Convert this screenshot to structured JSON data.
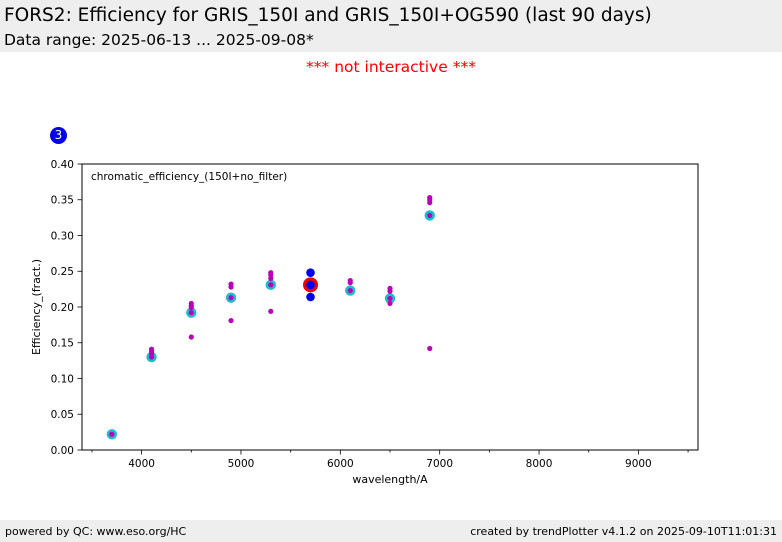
{
  "header": {
    "title": "FORS2: Efficiency for GRIS_150I and GRIS_150I+OG590 (last 90 days)",
    "subtitle": "Data range: 2025-06-13 ... 2025-09-08*"
  },
  "notice": "*** not interactive ***",
  "badge": "3",
  "footer": {
    "left": "powered by QC: www.eso.org/HC",
    "right": "created by trendPlotter v4.1.2 on 2025-09-10T11:01:31"
  },
  "chart_data": {
    "type": "scatter",
    "annotation": "chromatic_efficiency_(150I+no_filter)",
    "xlabel": "wavelength/A",
    "ylabel": "Efficiency_(fract.)",
    "xlim": [
      3400,
      9600
    ],
    "ylim": [
      0.0,
      0.4
    ],
    "xticks": [
      "4000",
      "5000",
      "6000",
      "7000",
      "8000",
      "9000"
    ],
    "yticks": [
      "0.00",
      "0.05",
      "0.10",
      "0.15",
      "0.20",
      "0.25",
      "0.30",
      "0.35",
      "0.40"
    ],
    "colors": {
      "history": "#bb00bb",
      "median": "#22bbcc",
      "latest": "#0000ee",
      "highlight": "#ee0000"
    },
    "history_points": [
      [
        4100,
        0.141
      ],
      [
        4100,
        0.138
      ],
      [
        4100,
        0.135
      ],
      [
        4500,
        0.205
      ],
      [
        4500,
        0.202
      ],
      [
        4500,
        0.199
      ],
      [
        4500,
        0.158
      ],
      [
        4900,
        0.232
      ],
      [
        4900,
        0.228
      ],
      [
        4900,
        0.181
      ],
      [
        5300,
        0.248
      ],
      [
        5300,
        0.245
      ],
      [
        5300,
        0.24
      ],
      [
        5300,
        0.194
      ],
      [
        6100,
        0.237
      ],
      [
        6100,
        0.234
      ],
      [
        6500,
        0.226
      ],
      [
        6500,
        0.222
      ],
      [
        6500,
        0.205
      ],
      [
        6900,
        0.353
      ],
      [
        6900,
        0.35
      ],
      [
        6900,
        0.346
      ],
      [
        6900,
        0.142
      ]
    ],
    "median_points": [
      [
        3700,
        0.022
      ],
      [
        4100,
        0.13
      ],
      [
        4500,
        0.192
      ],
      [
        4900,
        0.213
      ],
      [
        5300,
        0.231
      ],
      [
        6100,
        0.223
      ],
      [
        6500,
        0.212
      ],
      [
        6900,
        0.328
      ]
    ],
    "latest_points": [
      [
        5700,
        0.248
      ],
      [
        5700,
        0.231
      ],
      [
        5700,
        0.214
      ]
    ],
    "highlight_point": [
      5700,
      0.231
    ]
  }
}
